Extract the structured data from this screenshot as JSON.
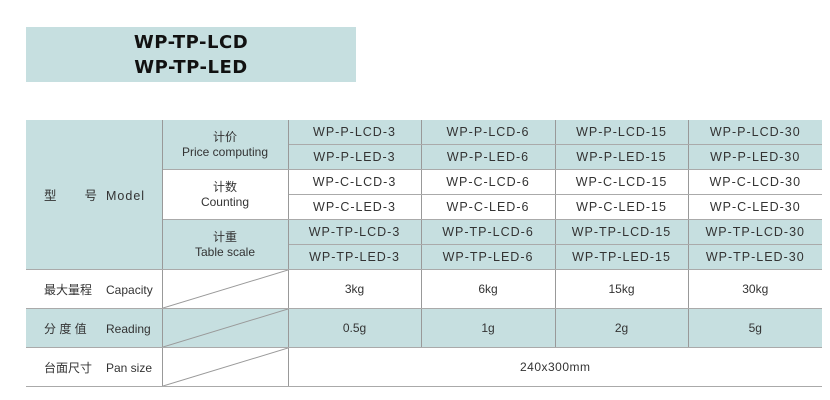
{
  "title": {
    "line1": "WP-TP-LCD",
    "line2": "WP-TP-LED"
  },
  "model_header": {
    "cn": "型　　号",
    "en": "Model"
  },
  "groups": [
    {
      "cn": "计价",
      "en": "Price computing",
      "rows": [
        [
          "WP-P-LCD-3",
          "WP-P-LCD-6",
          "WP-P-LCD-15",
          "WP-P-LCD-30"
        ],
        [
          "WP-P-LED-3",
          "WP-P-LED-6",
          "WP-P-LED-15",
          "WP-P-LED-30"
        ]
      ]
    },
    {
      "cn": "计数",
      "en": "Counting",
      "rows": [
        [
          "WP-C-LCD-3",
          "WP-C-LCD-6",
          "WP-C-LCD-15",
          "WP-C-LCD-30"
        ],
        [
          "WP-C-LED-3",
          "WP-C-LED-6",
          "WP-C-LED-15",
          "WP-C-LED-30"
        ]
      ]
    },
    {
      "cn": "计重",
      "en": "Table scale",
      "rows": [
        [
          "WP-TP-LCD-3",
          "WP-TP-LCD-6",
          "WP-TP-LCD-15",
          "WP-TP-LCD-30"
        ],
        [
          "WP-TP-LED-3",
          "WP-TP-LED-6",
          "WP-TP-LED-15",
          "WP-TP-LED-30"
        ]
      ]
    }
  ],
  "capacity": {
    "cn": "最大量程",
    "en": "Capacity",
    "values": [
      "3kg",
      "6kg",
      "15kg",
      "30kg"
    ]
  },
  "reading": {
    "cn": "分 度 值",
    "en": "Reading",
    "values": [
      "0.5g",
      "1g",
      "2g",
      "5g"
    ]
  },
  "pan_size": {
    "cn": "台面尺寸",
    "en": "Pan size",
    "value": "240x300mm"
  },
  "colors": {
    "accent": "#c6dfe0",
    "border": "#999999"
  }
}
